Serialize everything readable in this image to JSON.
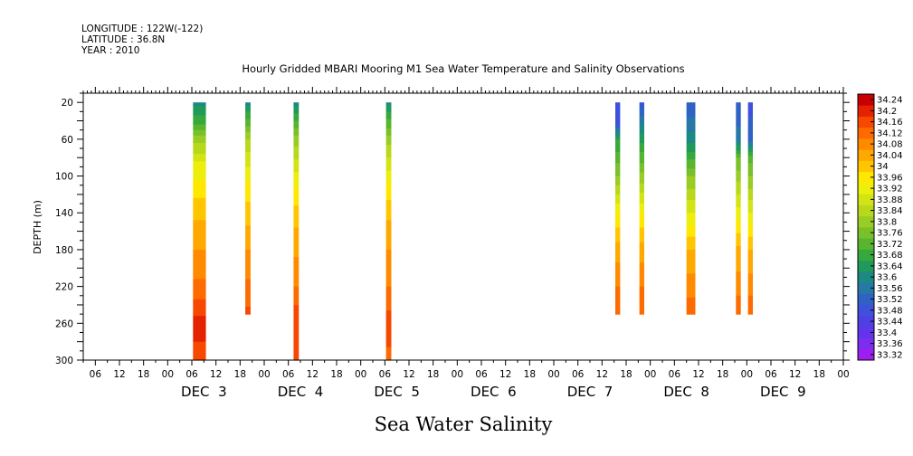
{
  "header": {
    "longitude": "LONGITUDE : 122W(-122)",
    "latitude": "LATITUDE : 36.8N",
    "year": "YEAR : 2010"
  },
  "chart_data": {
    "type": "heatmap",
    "title": "Hourly Gridded MBARI Mooring M1 Sea Water Temperature and Salinity Observations",
    "xlabel": "Sea Water Salinity",
    "ylabel": "DEPTH (m)",
    "x_units": "hours since Dec 3 00:00",
    "xlim": [
      -21,
      168
    ],
    "ylim": [
      300,
      10
    ],
    "y_ticks": [
      20,
      60,
      100,
      140,
      180,
      220,
      260,
      300
    ],
    "x_hour_labels": [
      "00",
      "06",
      "12",
      "18"
    ],
    "day_labels": [
      {
        "label": "DEC  3",
        "center_hour": 9
      },
      {
        "label": "DEC  4",
        "center_hour": 33
      },
      {
        "label": "DEC  5",
        "center_hour": 57
      },
      {
        "label": "DEC  6",
        "center_hour": 81
      },
      {
        "label": "DEC  7",
        "center_hour": 105
      },
      {
        "label": "DEC  8",
        "center_hour": 129
      },
      {
        "label": "DEC  9",
        "center_hour": 153
      }
    ],
    "color_levels": [
      33.32,
      33.36,
      33.4,
      33.44,
      33.48,
      33.52,
      33.56,
      33.6,
      33.64,
      33.68,
      33.72,
      33.76,
      33.8,
      33.84,
      33.88,
      33.92,
      33.96,
      34,
      34.04,
      34.08,
      34.12,
      34.16,
      34.2,
      34.24
    ],
    "colorbar_labels": [
      "34.24",
      "34.2",
      "34.16",
      "34.12",
      "34.08",
      "34.04",
      "34",
      "33.96",
      "33.92",
      "33.88",
      "33.84",
      "33.8",
      "33.76",
      "33.72",
      "33.68",
      "33.64",
      "33.6",
      "33.56",
      "33.52",
      "33.48",
      "33.44",
      "33.4",
      "33.36",
      "33.32"
    ],
    "columns": [
      {
        "x0": 6.3,
        "x1": 9.5,
        "depth_max": 300,
        "profile": [
          [
            20,
            33.62
          ],
          [
            40,
            33.7
          ],
          [
            60,
            33.82
          ],
          [
            90,
            33.94
          ],
          [
            110,
            33.97
          ],
          [
            140,
            34.03
          ],
          [
            170,
            34.07
          ],
          [
            200,
            34.1
          ],
          [
            230,
            34.15
          ],
          [
            260,
            34.22
          ],
          [
            280,
            34.2
          ],
          [
            300,
            34.18
          ]
        ]
      },
      {
        "x0": 19.3,
        "x1": 20.6,
        "depth_max": 250,
        "profile": [
          [
            20,
            33.62
          ],
          [
            60,
            33.84
          ],
          [
            100,
            33.95
          ],
          [
            140,
            34.02
          ],
          [
            180,
            34.08
          ],
          [
            220,
            34.13
          ],
          [
            250,
            34.17
          ]
        ]
      },
      {
        "x0": 31.3,
        "x1": 32.6,
        "depth_max": 300,
        "profile": [
          [
            20,
            33.62
          ],
          [
            60,
            33.82
          ],
          [
            100,
            33.93
          ],
          [
            140,
            34.02
          ],
          [
            180,
            34.07
          ],
          [
            220,
            34.12
          ],
          [
            260,
            34.2
          ],
          [
            300,
            34.16
          ]
        ]
      },
      {
        "x0": 54.3,
        "x1": 55.6,
        "depth_max": 300,
        "profile": [
          [
            20,
            33.63
          ],
          [
            60,
            33.82
          ],
          [
            100,
            33.94
          ],
          [
            140,
            34.03
          ],
          [
            180,
            34.08
          ],
          [
            220,
            34.12
          ],
          [
            260,
            34.18
          ],
          [
            300,
            34.15
          ]
        ]
      },
      {
        "x0": 111.3,
        "x1": 112.5,
        "depth_max": 250,
        "profile": [
          [
            20,
            33.48
          ],
          [
            45,
            33.52
          ],
          [
            60,
            33.68
          ],
          [
            100,
            33.8
          ],
          [
            140,
            33.96
          ],
          [
            180,
            34.06
          ],
          [
            220,
            34.12
          ],
          [
            250,
            34.16
          ]
        ]
      },
      {
        "x0": 117.3,
        "x1": 118.5,
        "depth_max": 250,
        "profile": [
          [
            20,
            33.5
          ],
          [
            45,
            33.6
          ],
          [
            80,
            33.74
          ],
          [
            140,
            33.96
          ],
          [
            180,
            34.06
          ],
          [
            220,
            34.12
          ],
          [
            250,
            34.16
          ]
        ]
      },
      {
        "x0": 129.0,
        "x1": 131.2,
        "depth_max": 250,
        "profile": [
          [
            20,
            33.52
          ],
          [
            60,
            33.62
          ],
          [
            100,
            33.8
          ],
          [
            140,
            33.92
          ],
          [
            180,
            34.04
          ],
          [
            220,
            34.1
          ],
          [
            250,
            34.15
          ]
        ]
      },
      {
        "x0": 141.3,
        "x1": 142.5,
        "depth_max": 250,
        "profile": [
          [
            20,
            33.52
          ],
          [
            60,
            33.58
          ],
          [
            80,
            33.76
          ],
          [
            140,
            33.94
          ],
          [
            180,
            34.05
          ],
          [
            220,
            34.1
          ],
          [
            250,
            34.16
          ]
        ]
      },
      {
        "x0": 144.3,
        "x1": 145.5,
        "depth_max": 250,
        "profile": [
          [
            20,
            33.5
          ],
          [
            60,
            33.55
          ],
          [
            80,
            33.74
          ],
          [
            140,
            33.92
          ],
          [
            180,
            34.04
          ],
          [
            220,
            34.1
          ],
          [
            250,
            34.16
          ]
        ]
      }
    ]
  }
}
